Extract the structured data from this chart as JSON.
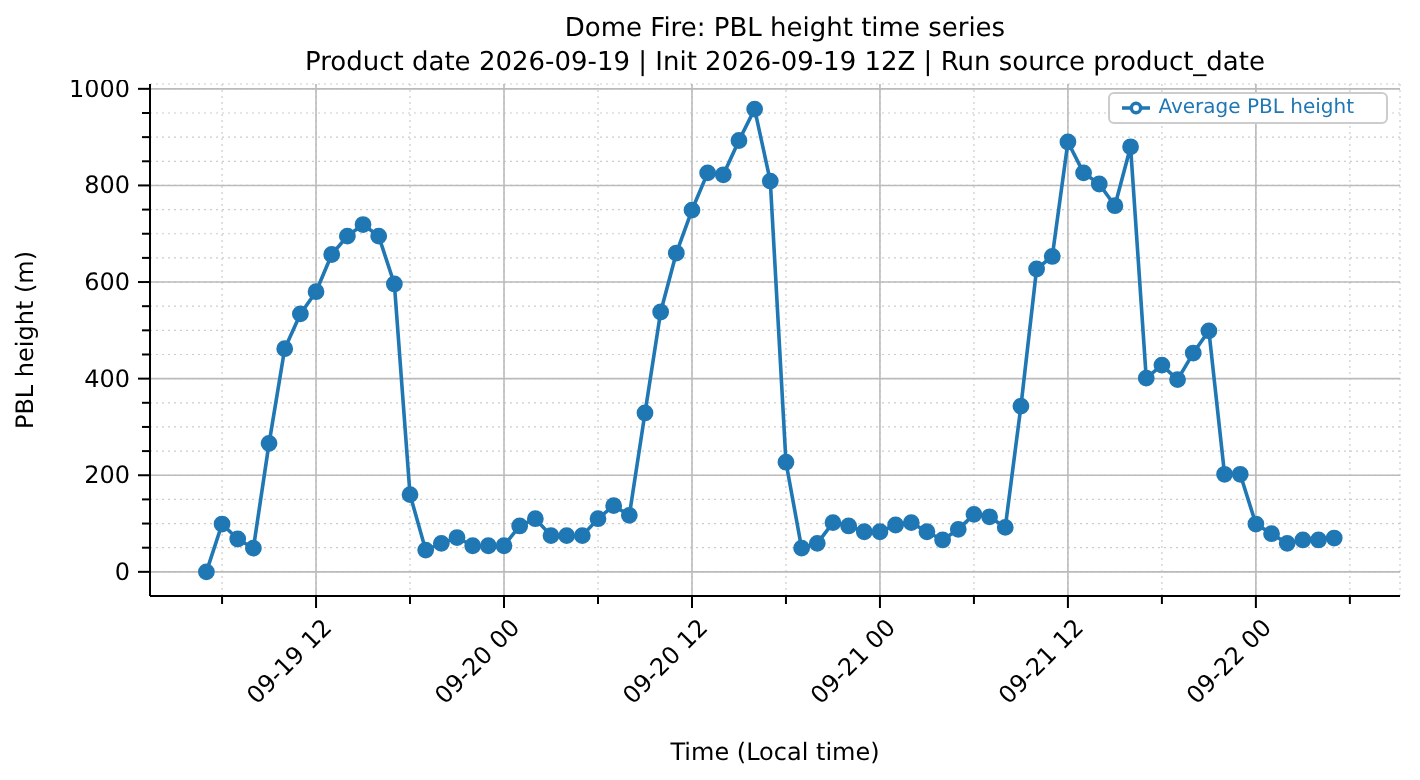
{
  "chart_data": {
    "type": "line",
    "title": "Dome Fire: PBL height time series",
    "subtitle": "Product date 2026-09-19 | Init 2026-09-19 12Z | Run source product_date",
    "xlabel": "Time (Local time)",
    "ylabel": "PBL height (m)",
    "x": [
      "2026-09-19T05:00",
      "2026-09-19T06:00",
      "2026-09-19T07:00",
      "2026-09-19T08:00",
      "2026-09-19T09:00",
      "2026-09-19T10:00",
      "2026-09-19T11:00",
      "2026-09-19T12:00",
      "2026-09-19T13:00",
      "2026-09-19T14:00",
      "2026-09-19T15:00",
      "2026-09-19T16:00",
      "2026-09-19T17:00",
      "2026-09-19T18:00",
      "2026-09-19T19:00",
      "2026-09-19T20:00",
      "2026-09-19T21:00",
      "2026-09-19T22:00",
      "2026-09-19T23:00",
      "2026-09-20T00:00",
      "2026-09-20T01:00",
      "2026-09-20T02:00",
      "2026-09-20T03:00",
      "2026-09-20T04:00",
      "2026-09-20T05:00",
      "2026-09-20T06:00",
      "2026-09-20T07:00",
      "2026-09-20T08:00",
      "2026-09-20T09:00",
      "2026-09-20T10:00",
      "2026-09-20T11:00",
      "2026-09-20T12:00",
      "2026-09-20T13:00",
      "2026-09-20T14:00",
      "2026-09-20T15:00",
      "2026-09-20T16:00",
      "2026-09-20T17:00",
      "2026-09-20T18:00",
      "2026-09-20T19:00",
      "2026-09-20T20:00",
      "2026-09-20T21:00",
      "2026-09-20T22:00",
      "2026-09-20T23:00",
      "2026-09-21T00:00",
      "2026-09-21T01:00",
      "2026-09-21T02:00",
      "2026-09-21T03:00",
      "2026-09-21T04:00",
      "2026-09-21T05:00",
      "2026-09-21T06:00",
      "2026-09-21T07:00",
      "2026-09-21T08:00",
      "2026-09-21T09:00",
      "2026-09-21T10:00",
      "2026-09-21T11:00",
      "2026-09-21T12:00",
      "2026-09-21T13:00",
      "2026-09-21T14:00",
      "2026-09-21T15:00",
      "2026-09-21T16:00",
      "2026-09-21T17:00",
      "2026-09-21T18:00",
      "2026-09-21T19:00",
      "2026-09-21T20:00",
      "2026-09-21T21:00",
      "2026-09-21T22:00",
      "2026-09-21T23:00",
      "2026-09-22T00:00",
      "2026-09-22T01:00",
      "2026-09-22T02:00",
      "2026-09-22T03:00",
      "2026-09-22T04:00",
      "2026-09-22T05:00"
    ],
    "series": [
      {
        "name": "Average PBL height",
        "color": "#1f77b4",
        "values": [
          0,
          99,
          68,
          49,
          266,
          462,
          534,
          580,
          657,
          695,
          719,
          695,
          596,
          160,
          45,
          59,
          71,
          54,
          54,
          54,
          95,
          110,
          75,
          75,
          75,
          110,
          137,
          117,
          329,
          538,
          660,
          749,
          826,
          822,
          893,
          958,
          809,
          227,
          49,
          59,
          102,
          95,
          83,
          83,
          97,
          102,
          83,
          66,
          88,
          119,
          114,
          92,
          343,
          627,
          653,
          890,
          826,
          803,
          758,
          880,
          401,
          428,
          398,
          453,
          499,
          202,
          202,
          99,
          79,
          59,
          66,
          66,
          70
        ]
      }
    ],
    "xlim": [
      "2026-09-19T01:24",
      "2026-09-22T09:12"
    ],
    "xticks": [
      {
        "value": "2026-09-19T06:00",
        "label": null
      },
      {
        "value": "2026-09-19T12:00",
        "label": "09-19 12"
      },
      {
        "value": "2026-09-19T18:00",
        "label": null
      },
      {
        "value": "2026-09-20T00:00",
        "label": "09-20 00"
      },
      {
        "value": "2026-09-20T06:00",
        "label": null
      },
      {
        "value": "2026-09-20T12:00",
        "label": "09-20 12"
      },
      {
        "value": "2026-09-20T18:00",
        "label": null
      },
      {
        "value": "2026-09-21T00:00",
        "label": "09-21 00"
      },
      {
        "value": "2026-09-21T06:00",
        "label": null
      },
      {
        "value": "2026-09-21T12:00",
        "label": "09-21 12"
      },
      {
        "value": "2026-09-21T18:00",
        "label": null
      },
      {
        "value": "2026-09-22T00:00",
        "label": "09-22 00"
      },
      {
        "value": "2026-09-22T06:00",
        "label": null
      }
    ],
    "ylim": [
      -50,
      1010
    ],
    "yticks": [
      0,
      {
        "value": 50,
        "label": null
      },
      {
        "value": 100,
        "label": null
      },
      {
        "value": 150,
        "label": null
      },
      200,
      {
        "value": 250,
        "label": null
      },
      {
        "value": 300,
        "label": null
      },
      {
        "value": 350,
        "label": null
      },
      400,
      {
        "value": 450,
        "label": null
      },
      {
        "value": 500,
        "label": null
      },
      {
        "value": 550,
        "label": null
      },
      600,
      {
        "value": 650,
        "label": null
      },
      {
        "value": 700,
        "label": null
      },
      {
        "value": 750,
        "label": null
      },
      800,
      {
        "value": 850,
        "label": null
      },
      {
        "value": 900,
        "label": null
      },
      {
        "value": 950,
        "label": null
      },
      1000
    ],
    "grid": true,
    "legend": "top right",
    "marker": "circle",
    "line_style": "solid"
  }
}
